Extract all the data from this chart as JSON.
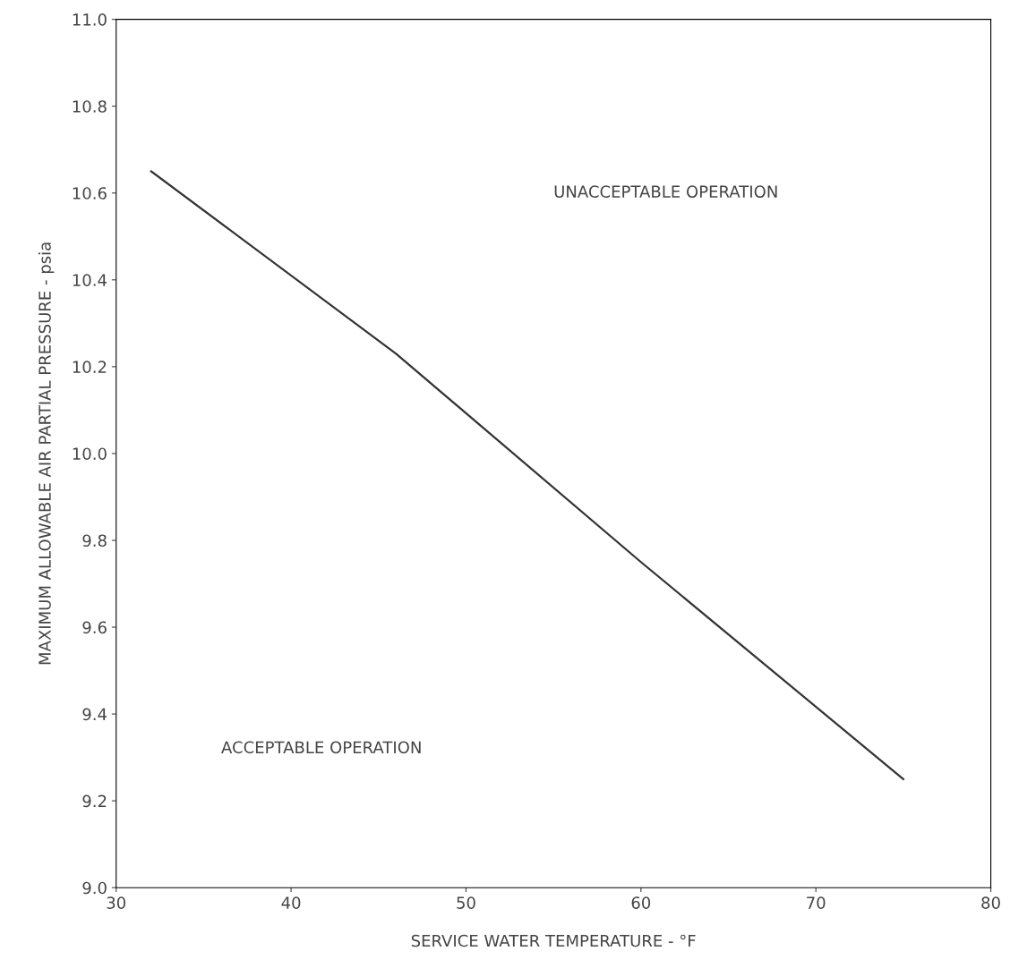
{
  "chart_data": {
    "type": "line",
    "xlabel": "SERVICE WATER TEMPERATURE - °F",
    "ylabel": "MAXIMUM ALLOWABLE AIR PARTIAL PRESSURE - psia",
    "series": [
      {
        "color": "#333333",
        "x": [
          32,
          46,
          60,
          75
        ],
        "values": [
          10.65,
          10.23,
          9.75,
          9.25
        ]
      }
    ],
    "xlim": [
      30,
      80
    ],
    "xticks": [
      30,
      40,
      50,
      60,
      70,
      80
    ],
    "ylim": [
      9.0,
      11.0
    ],
    "yticks": [
      {
        "value": 9.0,
        "label": "9.0"
      },
      {
        "value": 9.2,
        "label": "9.2"
      },
      {
        "value": 9.4,
        "label": "9.4"
      },
      {
        "value": 9.6,
        "label": "9.6"
      },
      {
        "value": 9.8,
        "label": "9.8"
      },
      {
        "value": 10.0,
        "label": "10.0"
      },
      {
        "value": 10.2,
        "label": "10.2"
      },
      {
        "value": 10.4,
        "label": "10.4"
      },
      {
        "value": 10.6,
        "label": "10.6"
      },
      {
        "value": 10.8,
        "label": "10.8"
      },
      {
        "value": 11.0,
        "label": "11.0"
      }
    ],
    "annotations": [
      "UNACCEPTABLE OPERATION",
      "ACCEPTABLE OPERATION"
    ],
    "grid": false,
    "marker": "none",
    "line_style": "solid"
  }
}
